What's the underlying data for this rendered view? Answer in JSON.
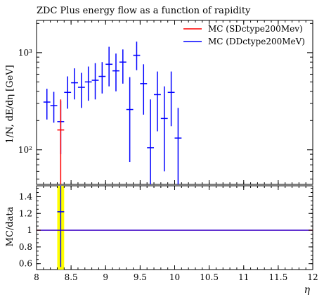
{
  "chart_data": {
    "type": "scatter",
    "title": "ZDC Plus energy flow as a function of rapidity",
    "xlabel": "η",
    "ylabel": "1/N, dE/dη [GeV]",
    "ratio_ylabel": "MC/data",
    "xlim": [
      8,
      12
    ],
    "ylim": [
      44,
      2150
    ],
    "ylog": true,
    "ratio_ylim": [
      0.53,
      1.53
    ],
    "legend_position": "top-right",
    "colors": {
      "sd": "#ff0000",
      "dd": "#0000ff",
      "band": "#ffff00"
    },
    "x_ticks": [
      {
        "value": 8,
        "label": "8"
      },
      {
        "value": 8.5,
        "label": "8.5"
      },
      {
        "value": 9,
        "label": "9"
      },
      {
        "value": 9.5,
        "label": "9.5"
      },
      {
        "value": 10,
        "label": "10"
      },
      {
        "value": 10.5,
        "label": "10.5"
      },
      {
        "value": 11,
        "label": "11"
      },
      {
        "value": 11.5,
        "label": "11.5"
      },
      {
        "value": 12,
        "label": "12"
      }
    ],
    "y_ticks": [
      {
        "value": 100,
        "label": "10²"
      },
      {
        "value": 1000,
        "label": "10³"
      }
    ],
    "ratio_ticks": [
      {
        "value": 0.6,
        "label": "0.6"
      },
      {
        "value": 0.8,
        "label": "0.8"
      },
      {
        "value": 1.0,
        "label": "1"
      },
      {
        "value": 1.2,
        "label": "1.2"
      },
      {
        "value": 1.4,
        "label": "1.4"
      }
    ],
    "series": [
      {
        "name": "MC (SDctype200Mev)",
        "color": "#ff0000",
        "points": [
          {
            "x": 8.35,
            "y": 160,
            "ylo": 44,
            "yhi": 330
          }
        ]
      },
      {
        "name": "MC (DDctype200MeV)",
        "color": "#0000ff",
        "points": [
          {
            "x": 8.15,
            "y": 310,
            "ylo": 205,
            "yhi": 425
          },
          {
            "x": 8.25,
            "y": 285,
            "ylo": 190,
            "yhi": 395
          },
          {
            "x": 8.35,
            "y": 195,
            "ylo": 90,
            "yhi": 320
          },
          {
            "x": 8.45,
            "y": 390,
            "ylo": 265,
            "yhi": 570
          },
          {
            "x": 8.55,
            "y": 490,
            "ylo": 330,
            "yhi": 690
          },
          {
            "x": 8.65,
            "y": 440,
            "ylo": 270,
            "yhi": 620
          },
          {
            "x": 8.75,
            "y": 500,
            "ylo": 320,
            "yhi": 720
          },
          {
            "x": 8.85,
            "y": 520,
            "ylo": 330,
            "yhi": 780
          },
          {
            "x": 8.95,
            "y": 570,
            "ylo": 380,
            "yhi": 800
          },
          {
            "x": 9.05,
            "y": 760,
            "ylo": 450,
            "yhi": 1150
          },
          {
            "x": 9.15,
            "y": 650,
            "ylo": 400,
            "yhi": 980
          },
          {
            "x": 9.25,
            "y": 800,
            "ylo": 480,
            "yhi": 1080
          },
          {
            "x": 9.35,
            "y": 260,
            "ylo": 75,
            "yhi": 560
          },
          {
            "x": 9.45,
            "y": 940,
            "ylo": 660,
            "yhi": 1300
          },
          {
            "x": 9.55,
            "y": 480,
            "ylo": 230,
            "yhi": 760
          },
          {
            "x": 9.65,
            "y": 105,
            "ylo": 44,
            "yhi": 330
          },
          {
            "x": 9.75,
            "y": 370,
            "ylo": 155,
            "yhi": 640
          },
          {
            "x": 9.85,
            "y": 210,
            "ylo": 60,
            "yhi": 450
          },
          {
            "x": 9.95,
            "y": 390,
            "ylo": 175,
            "yhi": 640
          },
          {
            "x": 10.05,
            "y": 132,
            "ylo": 44,
            "yhi": 270
          }
        ]
      }
    ],
    "ratio": {
      "band": {
        "x0": 8.3,
        "x1": 8.4,
        "lo": 0.53,
        "hi": 1.53
      },
      "line_value": 1.0,
      "point": {
        "x": 8.35,
        "y": 1.22,
        "ylo": 0.56,
        "yhi": 1.53
      }
    }
  }
}
